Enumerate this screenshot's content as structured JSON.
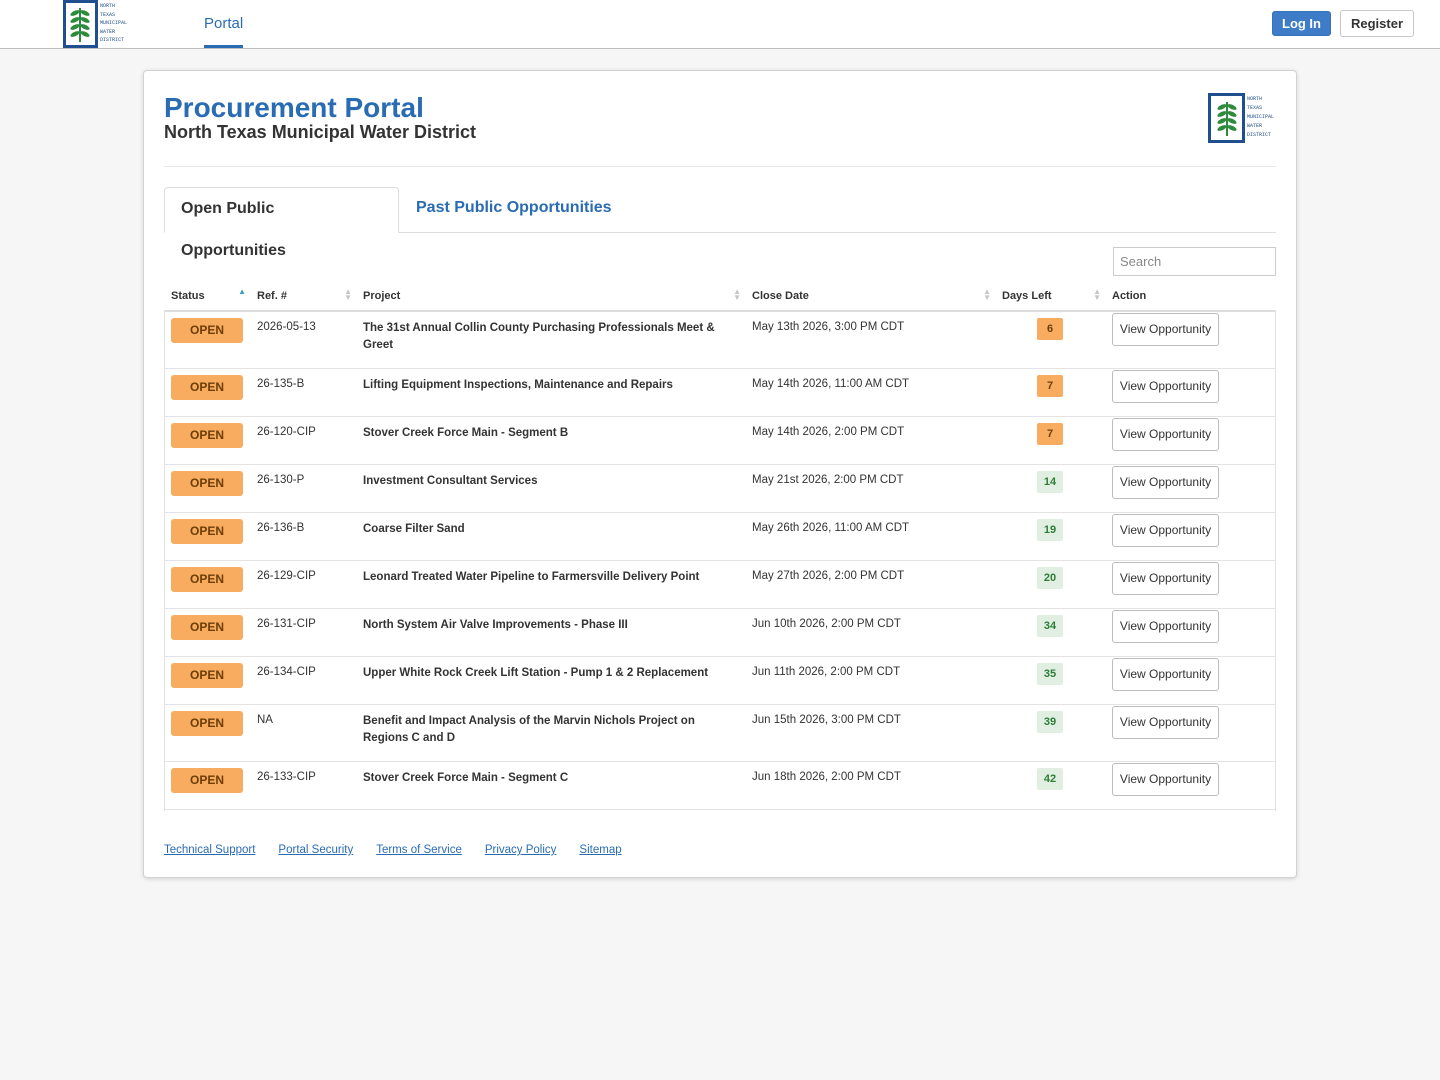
{
  "header": {
    "logo_text": "NORTH\nTEXAS\nMUNICIPAL\nWATER\nDISTRICT",
    "nav_portal": "Portal",
    "login": "Log In",
    "register": "Register"
  },
  "page": {
    "title": "Procurement Portal",
    "subtitle": "North Texas Municipal Water District"
  },
  "tabs": [
    {
      "label": "Open Public Opportunities",
      "active": true
    },
    {
      "label": "Past Public Opportunities",
      "active": false
    }
  ],
  "search": {
    "placeholder": "Search"
  },
  "table": {
    "columns": [
      "Status",
      "Ref. #",
      "Project",
      "Close Date",
      "Days Left",
      "Action"
    ],
    "sorted_column": "Status",
    "sort_direction": "ascending",
    "rows": [
      {
        "status": "OPEN",
        "ref": "2026-05-13",
        "project": "The 31st Annual Collin County Purchasing Professionals Meet & Greet",
        "close": "May 13th 2026, 3:00 PM CDT",
        "days": "6",
        "days_level": "warn",
        "action": "View Opportunity"
      },
      {
        "status": "OPEN",
        "ref": "26-135-B",
        "project": "Lifting Equipment Inspections, Maintenance and Repairs",
        "close": "May 14th 2026, 11:00 AM CDT",
        "days": "7",
        "days_level": "warn",
        "action": "View Opportunity"
      },
      {
        "status": "OPEN",
        "ref": "26-120-CIP",
        "project": "Stover Creek Force Main - Segment B",
        "close": "May 14th 2026, 2:00 PM CDT",
        "days": "7",
        "days_level": "warn",
        "action": "View Opportunity"
      },
      {
        "status": "OPEN",
        "ref": "26-130-P",
        "project": "Investment Consultant Services",
        "close": "May 21st 2026, 2:00 PM CDT",
        "days": "14",
        "days_level": "ok",
        "action": "View Opportunity"
      },
      {
        "status": "OPEN",
        "ref": "26-136-B",
        "project": "Coarse Filter Sand",
        "close": "May 26th 2026, 11:00 AM CDT",
        "days": "19",
        "days_level": "ok",
        "action": "View Opportunity"
      },
      {
        "status": "OPEN",
        "ref": "26-129-CIP",
        "project": "Leonard Treated Water Pipeline to Farmersville Delivery Point",
        "close": "May 27th 2026, 2:00 PM CDT",
        "days": "20",
        "days_level": "ok",
        "action": "View Opportunity"
      },
      {
        "status": "OPEN",
        "ref": "26-131-CIP",
        "project": "North System Air Valve Improvements - Phase III",
        "close": "Jun 10th 2026, 2:00 PM CDT",
        "days": "34",
        "days_level": "ok",
        "action": "View Opportunity"
      },
      {
        "status": "OPEN",
        "ref": "26-134-CIP",
        "project": "Upper White Rock Creek Lift Station - Pump 1 & 2 Replacement",
        "close": "Jun 11th 2026, 2:00 PM CDT",
        "days": "35",
        "days_level": "ok",
        "action": "View Opportunity"
      },
      {
        "status": "OPEN",
        "ref": "NA",
        "project": "Benefit and Impact Analysis of the Marvin Nichols Project on Regions C and D",
        "close": "Jun 15th 2026, 3:00 PM CDT",
        "days": "39",
        "days_level": "ok",
        "action": "View Opportunity"
      },
      {
        "status": "OPEN",
        "ref": "26-133-CIP",
        "project": "Stover Creek Force Main - Segment C",
        "close": "Jun 18th 2026, 2:00 PM CDT",
        "days": "42",
        "days_level": "ok",
        "action": "View Opportunity"
      }
    ]
  },
  "footer": {
    "links": [
      "Technical Support",
      "Portal Security",
      "Terms of Service",
      "Privacy Policy",
      "Sitemap"
    ]
  },
  "colors": {
    "brand_blue": "#2a6cb3",
    "status_open": "#f7ac5f",
    "days_ok_bg": "#e1efe2",
    "days_ok_text": "#2c7d36"
  },
  "icons": {
    "logo": "nt-mwd-plant-logo-icon",
    "sort_asc": "sort-ascending-icon",
    "sort_both": "sort-icon"
  }
}
